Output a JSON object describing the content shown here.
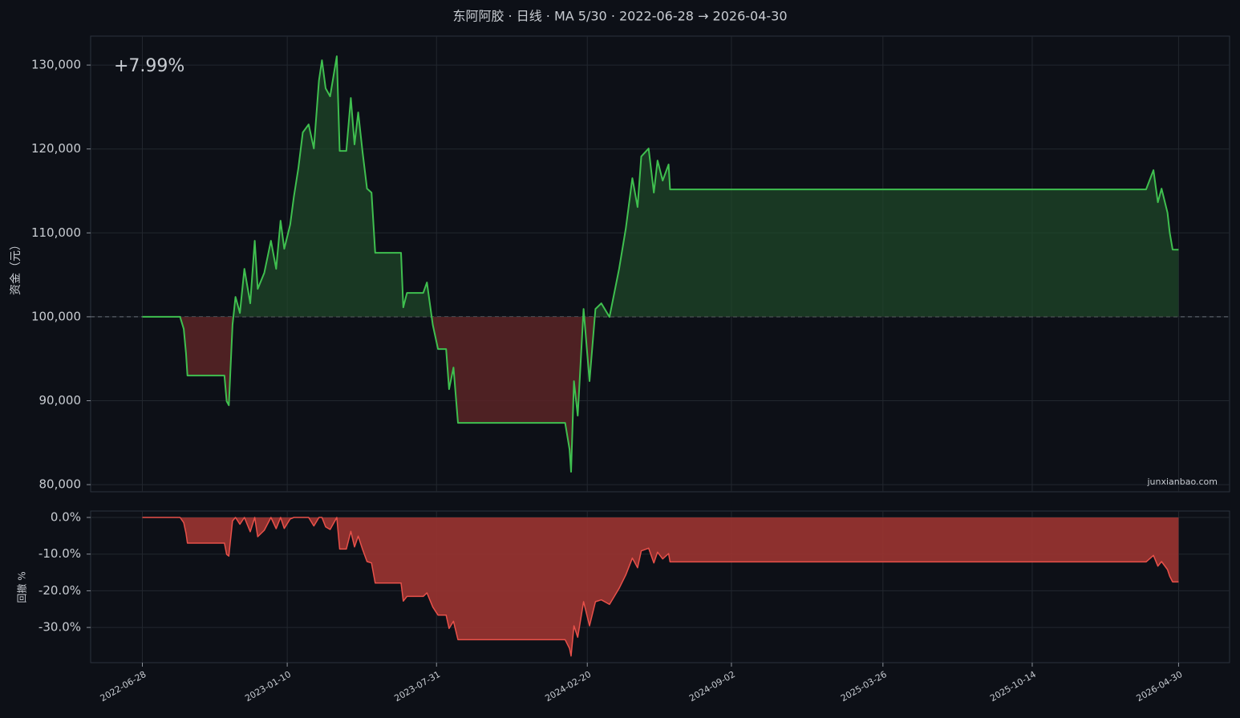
{
  "chart_data": [
    {
      "type": "line",
      "title": "东阿阿胶 · 日线 · MA 5/30 · 2022-06-28 → 2026-04-30",
      "ylabel": "资金（元）",
      "annotation": "+7.99%",
      "watermark": "junxianbao.com",
      "x": [
        "2022-06-28",
        "2022-08-18",
        "2022-08-23",
        "2022-08-26",
        "2022-08-28",
        "2022-10-17",
        "2022-10-20",
        "2022-10-23",
        "2022-10-28",
        "2022-11-01",
        "2022-11-07",
        "2022-11-13",
        "2022-11-21",
        "2022-11-27",
        "2022-12-01",
        "2022-12-10",
        "2022-12-19",
        "2022-12-26",
        "2023-01-01",
        "2023-01-06",
        "2023-01-14",
        "2023-01-19",
        "2023-01-25",
        "2023-01-31",
        "2023-02-08",
        "2023-02-15",
        "2023-02-22",
        "2023-02-26",
        "2023-03-03",
        "2023-03-09",
        "2023-03-18",
        "2023-03-22",
        "2023-03-31",
        "2023-04-06",
        "2023-04-11",
        "2023-04-16",
        "2023-04-22",
        "2023-04-28",
        "2023-05-04",
        "2023-05-09",
        "2023-06-13",
        "2023-06-16",
        "2023-06-21",
        "2023-07-13",
        "2023-07-18",
        "2023-07-26",
        "2023-08-02",
        "2023-08-13",
        "2023-08-17",
        "2023-08-23",
        "2023-08-29",
        "2024-01-21",
        "2024-01-27",
        "2024-01-29",
        "2024-02-02",
        "2024-02-07",
        "2024-02-15",
        "2024-02-23",
        "2024-03-02",
        "2024-03-10",
        "2024-03-21",
        "2024-04-03",
        "2024-04-12",
        "2024-04-21",
        "2024-04-28",
        "2024-05-03",
        "2024-05-13",
        "2024-05-20",
        "2024-05-25",
        "2024-06-01",
        "2024-06-09",
        "2024-06-11",
        "2026-03-17",
        "2026-03-27",
        "2026-04-02",
        "2026-04-07",
        "2026-04-15",
        "2026-04-18",
        "2026-04-22",
        "2026-04-30"
      ],
      "values": [
        100000,
        100000,
        98550,
        95680,
        93000,
        93000,
        89940,
        89460,
        99030,
        102370,
        100460,
        105720,
        101610,
        109060,
        103330,
        105240,
        109060,
        105720,
        111450,
        108110,
        110980,
        114320,
        117660,
        121970,
        122920,
        120060,
        128180,
        130570,
        127230,
        126270,
        131050,
        119770,
        119770,
        126080,
        120540,
        124360,
        119580,
        115280,
        114800,
        107630,
        107630,
        101130,
        102850,
        102850,
        104090,
        99030,
        96160,
        96160,
        91380,
        93960,
        87360,
        87360,
        84210,
        81530,
        92330,
        88220,
        100940,
        92330,
        100940,
        101610,
        99980,
        105720,
        110500,
        116520,
        113080,
        119100,
        120060,
        114800,
        118620,
        116230,
        118150,
        115180,
        115180,
        117480,
        113650,
        115280,
        112410,
        110020,
        108010,
        107990
      ],
      "color": "#3fbf4f",
      "baseline": 100000,
      "fill_above_color": "#1f4a2a",
      "fill_below_color": "#5a2526",
      "xlim": [
        "2022-04-19",
        "2026-07-08"
      ],
      "ylim": [
        79150,
        133450
      ],
      "yticks": [
        {
          "value": 80000,
          "label": "80,000"
        },
        {
          "value": 90000,
          "label": "90,000"
        },
        {
          "value": 100000,
          "label": "100,000"
        },
        {
          "value": 110000,
          "label": "110,000"
        },
        {
          "value": 120000,
          "label": "120,000"
        },
        {
          "value": 130000,
          "label": "130,000"
        }
      ],
      "grid": true
    },
    {
      "type": "area",
      "ylabel": "回撤 %",
      "x": [
        "2022-06-28",
        "2022-08-18",
        "2022-08-23",
        "2022-08-26",
        "2022-08-28",
        "2022-10-17",
        "2022-10-20",
        "2022-10-23",
        "2022-10-28",
        "2022-11-01",
        "2022-11-07",
        "2022-11-13",
        "2022-11-21",
        "2022-11-27",
        "2022-12-01",
        "2022-12-10",
        "2022-12-19",
        "2022-12-26",
        "2023-01-01",
        "2023-01-06",
        "2023-01-14",
        "2023-01-19",
        "2023-01-25",
        "2023-01-31",
        "2023-02-08",
        "2023-02-15",
        "2023-02-22",
        "2023-02-26",
        "2023-03-03",
        "2023-03-09",
        "2023-03-18",
        "2023-03-22",
        "2023-03-31",
        "2023-04-06",
        "2023-04-11",
        "2023-04-16",
        "2023-04-22",
        "2023-04-28",
        "2023-05-04",
        "2023-05-09",
        "2023-06-13",
        "2023-06-16",
        "2023-06-21",
        "2023-07-13",
        "2023-07-18",
        "2023-07-26",
        "2023-08-02",
        "2023-08-13",
        "2023-08-17",
        "2023-08-23",
        "2023-08-29",
        "2024-01-21",
        "2024-01-27",
        "2024-01-29",
        "2024-02-02",
        "2024-02-07",
        "2024-02-15",
        "2024-02-23",
        "2024-03-02",
        "2024-03-10",
        "2024-03-21",
        "2024-04-03",
        "2024-04-12",
        "2024-04-21",
        "2024-04-28",
        "2024-05-03",
        "2024-05-13",
        "2024-05-20",
        "2024-05-25",
        "2024-06-01",
        "2024-06-09",
        "2024-06-11",
        "2026-03-17",
        "2026-03-27",
        "2026-04-02",
        "2026-04-07",
        "2026-04-15",
        "2026-04-18",
        "2026-04-22",
        "2026-04-30"
      ],
      "values": [
        0,
        0,
        -1.45,
        -4.32,
        -7,
        -7,
        -10.06,
        -10.54,
        -0.97,
        0,
        -1.87,
        0,
        -3.89,
        0,
        -5.25,
        -3.5,
        0,
        -3.06,
        0,
        -3,
        -0.42,
        0,
        0,
        0,
        0,
        -2.33,
        0,
        0,
        -2.56,
        -3.29,
        0,
        -8.61,
        -8.61,
        -3.79,
        -8.02,
        -5.1,
        -8.75,
        -12.03,
        -12.4,
        -17.87,
        -17.87,
        -22.83,
        -21.52,
        -21.52,
        -20.57,
        -24.43,
        -26.62,
        -26.62,
        -30.27,
        -28.3,
        -33.34,
        -33.34,
        -35.74,
        -37.79,
        -29.55,
        -32.68,
        -22.98,
        -29.55,
        -22.98,
        -22.46,
        -23.71,
        -19.33,
        -15.68,
        -11.09,
        -13.71,
        -9.12,
        -8.39,
        -12.4,
        -9.48,
        -11.31,
        -9.84,
        -12.11,
        -12.11,
        -10.35,
        -13.28,
        -12.03,
        -14.22,
        -16.05,
        -17.58,
        -17.6
      ],
      "color": "#e8514a",
      "fill_color": "#9b3431",
      "xlim": [
        "2022-04-19",
        "2026-07-08"
      ],
      "ylim": [
        -39.6,
        1.75
      ],
      "xticks": [
        "2022-06-28",
        "2023-01-10",
        "2023-07-31",
        "2024-02-20",
        "2024-09-02",
        "2025-03-26",
        "2025-10-14",
        "2026-04-30"
      ],
      "yticks": [
        {
          "value": -30,
          "label": "-30.0%"
        },
        {
          "value": -20,
          "label": "-20.0%"
        },
        {
          "value": -10,
          "label": "-10.0%"
        },
        {
          "value": 0,
          "label": "0.0%"
        }
      ],
      "grid": true
    }
  ]
}
